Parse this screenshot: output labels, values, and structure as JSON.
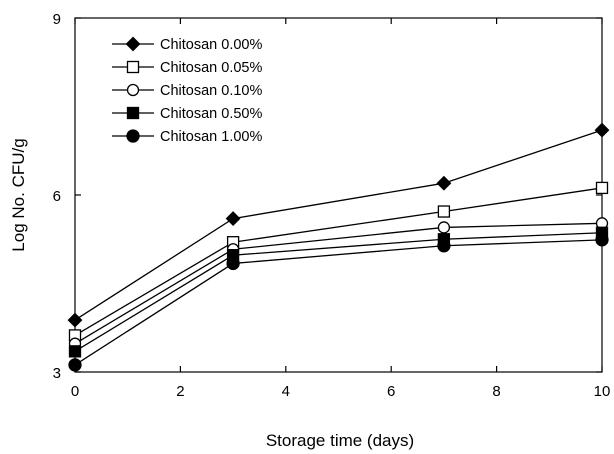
{
  "chart_data": {
    "type": "line",
    "title": "",
    "xlabel": "Storage time (days)",
    "ylabel": "Log No. CFU/g",
    "xlim": [
      0,
      10
    ],
    "ylim": [
      3,
      9
    ],
    "xticks": [
      0,
      2,
      4,
      6,
      8,
      10
    ],
    "yticks": [
      3,
      6,
      9
    ],
    "grid": false,
    "legend_position": "top-left",
    "x": [
      0,
      3,
      7,
      10
    ],
    "series": [
      {
        "name": "Chitosan 0.00%",
        "marker": "diamond-filled",
        "values": [
          3.88,
          5.6,
          6.2,
          7.1
        ]
      },
      {
        "name": "Chitosan 0.05%",
        "marker": "square-open",
        "values": [
          3.62,
          5.2,
          5.72,
          6.12
        ]
      },
      {
        "name": "Chitosan 0.10%",
        "marker": "circle-open",
        "values": [
          3.48,
          5.08,
          5.45,
          5.52
        ]
      },
      {
        "name": "Chitosan 0.50%",
        "marker": "square-filled",
        "values": [
          3.35,
          4.98,
          5.25,
          5.36
        ]
      },
      {
        "name": "Chitosan 1.00%",
        "marker": "circle-filled",
        "values": [
          3.12,
          4.84,
          5.14,
          5.24
        ]
      }
    ]
  }
}
